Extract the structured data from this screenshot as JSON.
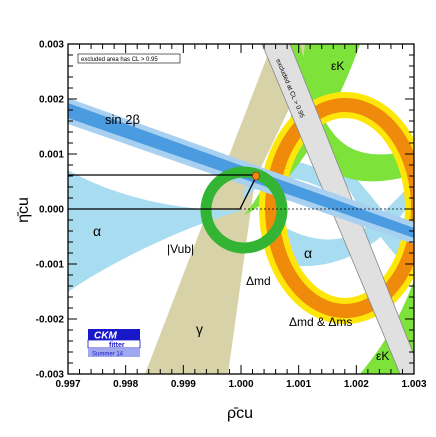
{
  "chart_data": {
    "type": "scatter",
    "title": "",
    "xlabel": "ρ̄cu",
    "ylabel": "η̄cu",
    "xlim": [
      0.997,
      1.003
    ],
    "ylim": [
      -0.003,
      0.003
    ],
    "x_ticks": [
      "0.997",
      "0.998",
      "0.999",
      "1.000",
      "1.001",
      "1.002",
      "1.003"
    ],
    "y_ticks": [
      "0.003",
      "0.002",
      "0.001",
      "0.000",
      "-0.001",
      "-0.002",
      "-0.003"
    ],
    "grid": false,
    "legend_note": "excluded area has CL > 0.95",
    "excluded_band_label": "excluded at CL > 0.95",
    "constraints": [
      {
        "name": "sin 2β",
        "color": "#4a9be0"
      },
      {
        "name": "α",
        "color": "#a8dcf0"
      },
      {
        "name": "|Vub|",
        "color": "#33b533"
      },
      {
        "name": "γ",
        "color": "#d8d2a8"
      },
      {
        "name": "Δmd",
        "color": "#f08a0a"
      },
      {
        "name": "Δmd & Δms",
        "color": "#ffe60a"
      },
      {
        "name": "εK",
        "color": "#7de23a"
      }
    ],
    "best_fit_point": {
      "x": 1.0003,
      "y": 0.0006
    },
    "logo": {
      "line1": "CKM",
      "line2": "fitter",
      "line3": "Summer 14",
      "color": "#1818c8"
    }
  }
}
